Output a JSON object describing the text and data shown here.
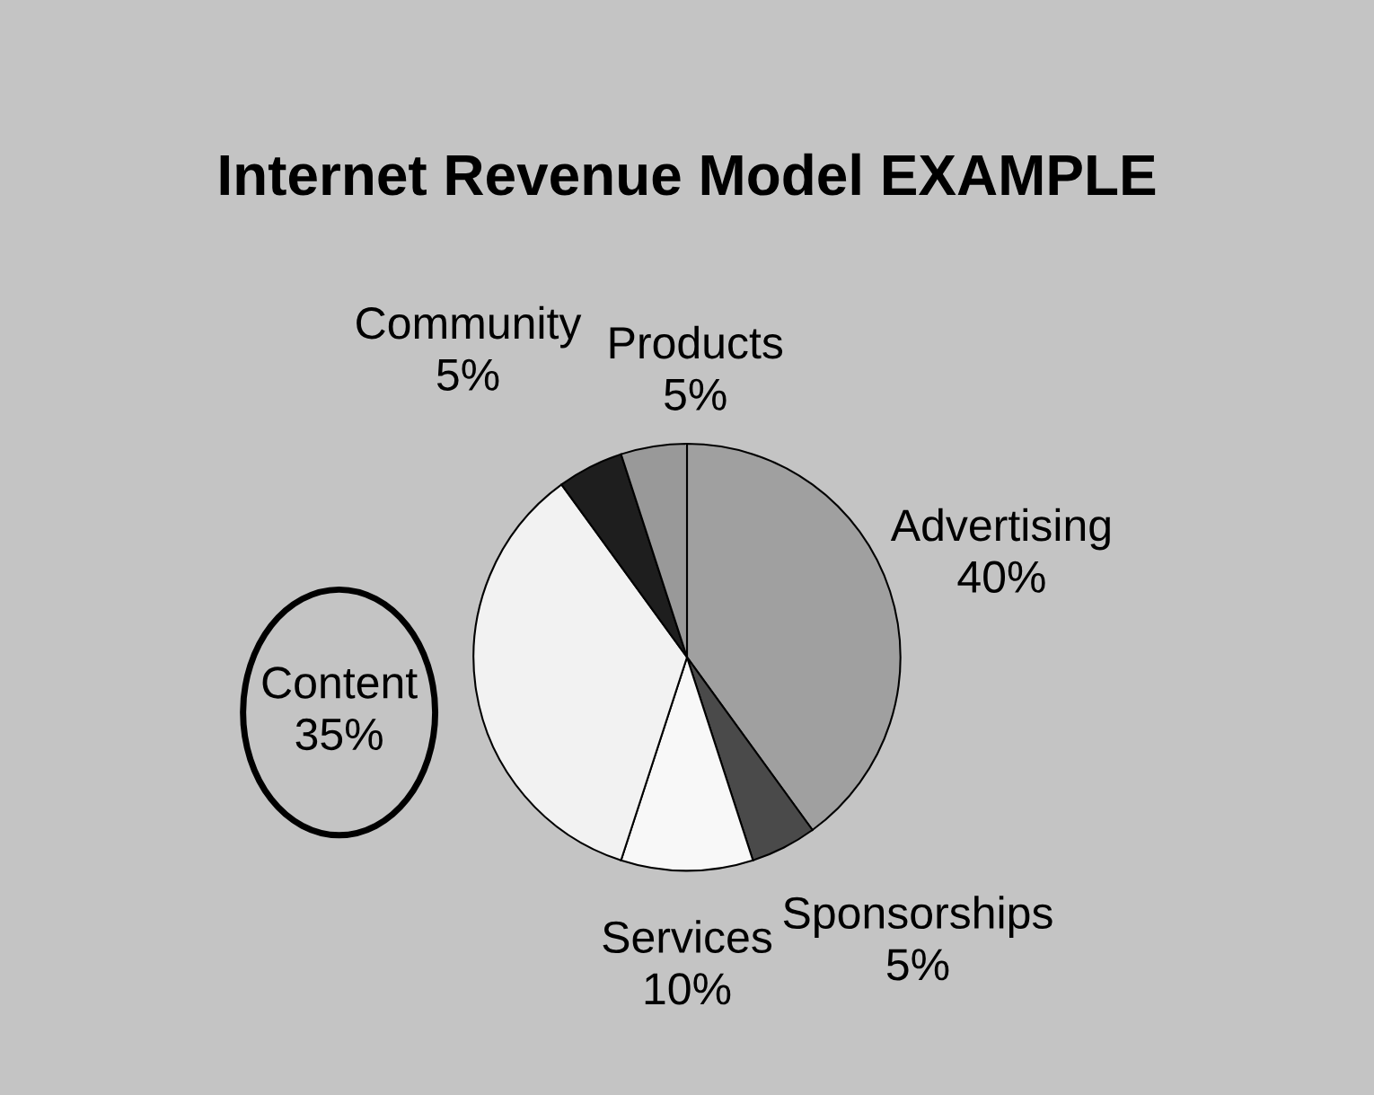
{
  "chart_data": {
    "type": "pie",
    "title": "Internet Revenue Model EXAMPLE",
    "categories": [
      "Advertising",
      "Sponsorships",
      "Services",
      "Content",
      "Community",
      "Products"
    ],
    "values": [
      40,
      5,
      10,
      35,
      5,
      5
    ],
    "value_labels": [
      "40%",
      "5%",
      "10%",
      "35%",
      "5%",
      "5%"
    ],
    "colors": [
      "#a0a0a0",
      "#4a4a4a",
      "#f8f8f8",
      "#f2f2f2",
      "#1e1e1e",
      "#999999"
    ],
    "legend": false
  }
}
